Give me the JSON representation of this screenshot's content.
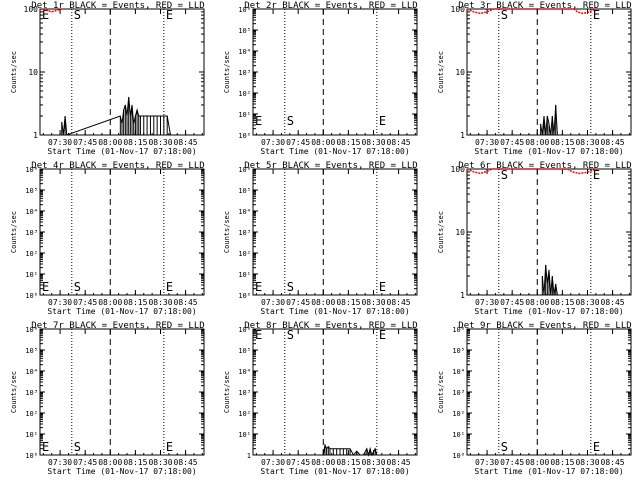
{
  "colors": {
    "events": "#000000",
    "lld": "#ff0000",
    "axes": "#000000",
    "background": "#ffffff"
  },
  "x_axis": {
    "tick_labels": [
      "07:30",
      "07:45",
      "08:00",
      "08:15",
      "08:30",
      "08:45"
    ],
    "title": "Start Time (01-Nov-17 07:18:00)"
  },
  "y_axis_title": "Counts/sec",
  "chart_data": [
    {
      "type": "line",
      "scale": "log",
      "title": "Det 1r BLACK = Events, RED = LLD",
      "ylim": [
        1,
        100
      ],
      "ytick_labels": [
        "1",
        "10",
        "100"
      ],
      "S_time": "07:37",
      "E_time": "08:32",
      "markers": [
        {
          "letter": "E",
          "time": "07:18"
        },
        {
          "letter": "S",
          "time": "07:37"
        },
        {
          "letter": "E",
          "time": "08:32"
        }
      ],
      "lld": [
        {
          "t": "07:18",
          "v": 100
        },
        {
          "t": "07:22",
          "v": 95
        },
        {
          "t": "07:25",
          "v": 90
        },
        {
          "t": "07:28",
          "v": 95
        },
        {
          "t": "07:31",
          "v": 100
        }
      ],
      "events": [
        {
          "t": "07:31",
          "v": 1.6
        },
        {
          "t": "07:32",
          "v": 1
        },
        {
          "t": "07:33",
          "v": 2
        },
        {
          "t": "07:34",
          "v": 1
        },
        {
          "t": "08:06",
          "v": 2
        },
        {
          "t": "08:07",
          "v": 1.5
        },
        {
          "t": "08:08",
          "v": 2.5
        },
        {
          "t": "08:09",
          "v": 3
        },
        {
          "t": "08:10",
          "v": 2
        },
        {
          "t": "08:11",
          "v": 4
        },
        {
          "t": "08:12",
          "v": 2
        },
        {
          "t": "08:13",
          "v": 3
        },
        {
          "t": "08:14",
          "v": 1.5
        },
        {
          "t": "08:15",
          "v": 2
        },
        {
          "t": "08:16",
          "v": 2.5
        },
        {
          "t": "08:17",
          "v": 2
        },
        {
          "t": "08:18",
          "v": 2
        },
        {
          "t": "08:20",
          "v": 2
        },
        {
          "t": "08:22",
          "v": 2
        },
        {
          "t": "08:24",
          "v": 2
        },
        {
          "t": "08:26",
          "v": 2
        },
        {
          "t": "08:28",
          "v": 2
        },
        {
          "t": "08:30",
          "v": 2
        },
        {
          "t": "08:32",
          "v": 2
        },
        {
          "t": "08:34",
          "v": 2
        },
        {
          "t": "08:36",
          "v": 1
        }
      ]
    },
    {
      "type": "line",
      "scale": "log",
      "title": "Det 2r BLACK = Events, RED = LLD",
      "ylim": [
        1,
        1000000
      ],
      "ytick_labels": [
        "10⁰",
        "10¹",
        "10²",
        "10³",
        "10⁴",
        "10⁵",
        "10⁶"
      ],
      "S_time": "07:37",
      "E_time": "08:32",
      "markers": [
        {
          "letter": "E",
          "time": "07:18"
        },
        {
          "letter": "S",
          "time": "07:37"
        },
        {
          "letter": "E",
          "time": "08:32"
        }
      ],
      "lld": [],
      "events": []
    },
    {
      "type": "line",
      "scale": "log",
      "title": "Det 3r BLACK = Events, RED = LLD",
      "ylim": [
        1,
        100
      ],
      "ytick_labels": [
        "1",
        "10",
        "100"
      ],
      "S_time": "07:37",
      "E_time": "08:32",
      "markers": [
        {
          "letter": "S",
          "time": "07:37"
        },
        {
          "letter": "E",
          "time": "08:32"
        }
      ],
      "lld": [
        {
          "t": "07:18",
          "v": 100
        },
        {
          "t": "07:22",
          "v": 90
        },
        {
          "t": "07:26",
          "v": 85
        },
        {
          "t": "07:30",
          "v": 90
        },
        {
          "t": "07:34",
          "v": 100
        },
        {
          "t": "08:22",
          "v": 100
        },
        {
          "t": "08:24",
          "v": 90
        },
        {
          "t": "08:27",
          "v": 85
        },
        {
          "t": "08:30",
          "v": 88
        },
        {
          "t": "08:33",
          "v": 95
        },
        {
          "t": "08:35",
          "v": 100
        }
      ],
      "events": [
        {
          "t": "08:02",
          "v": 1.5
        },
        {
          "t": "08:03",
          "v": 1
        },
        {
          "t": "08:04",
          "v": 2
        },
        {
          "t": "08:05",
          "v": 1
        },
        {
          "t": "08:06",
          "v": 2
        },
        {
          "t": "08:07",
          "v": 1.5
        },
        {
          "t": "08:08",
          "v": 1
        },
        {
          "t": "08:09",
          "v": 2
        },
        {
          "t": "08:10",
          "v": 1
        },
        {
          "t": "08:11",
          "v": 3
        },
        {
          "t": "08:12",
          "v": 1
        }
      ]
    },
    {
      "type": "line",
      "scale": "log",
      "title": "Det 4r BLACK = Events, RED = LLD",
      "ylim": [
        1,
        1000000
      ],
      "ytick_labels": [
        "10⁰",
        "10¹",
        "10²",
        "10³",
        "10⁴",
        "10⁵",
        "10⁶"
      ],
      "S_time": "07:37",
      "E_time": "08:32",
      "markers": [
        {
          "letter": "E",
          "time": "07:18"
        },
        {
          "letter": "S",
          "time": "07:37"
        },
        {
          "letter": "E",
          "time": "08:32"
        }
      ],
      "lld": [],
      "events": []
    },
    {
      "type": "line",
      "scale": "log",
      "title": "Det 5r BLACK = Events, RED = LLD",
      "ylim": [
        1,
        1000000
      ],
      "ytick_labels": [
        "10⁰",
        "10¹",
        "10²",
        "10³",
        "10⁴",
        "10⁵",
        "10⁶"
      ],
      "S_time": "07:37",
      "E_time": "08:32",
      "markers": [
        {
          "letter": "E",
          "time": "07:18"
        },
        {
          "letter": "S",
          "time": "07:37"
        },
        {
          "letter": "E",
          "time": "08:32"
        }
      ],
      "lld": [],
      "events": []
    },
    {
      "type": "line",
      "scale": "log",
      "title": "Det 6r BLACK = Events, RED = LLD",
      "ylim": [
        1,
        100
      ],
      "ytick_labels": [
        "1",
        "10",
        "100"
      ],
      "S_time": "07:37",
      "E_time": "08:32",
      "markers": [
        {
          "letter": "S",
          "time": "07:37"
        },
        {
          "letter": "E",
          "time": "08:32"
        }
      ],
      "lld": [
        {
          "t": "07:18",
          "v": 100
        },
        {
          "t": "07:22",
          "v": 90
        },
        {
          "t": "07:26",
          "v": 85
        },
        {
          "t": "07:30",
          "v": 92
        },
        {
          "t": "07:33",
          "v": 100
        },
        {
          "t": "08:18",
          "v": 100
        },
        {
          "t": "08:21",
          "v": 90
        },
        {
          "t": "08:25",
          "v": 85
        },
        {
          "t": "08:29",
          "v": 88
        },
        {
          "t": "08:33",
          "v": 95
        },
        {
          "t": "08:36",
          "v": 100
        }
      ],
      "events": [
        {
          "t": "08:03",
          "v": 2
        },
        {
          "t": "08:04",
          "v": 1
        },
        {
          "t": "08:05",
          "v": 3
        },
        {
          "t": "08:06",
          "v": 1.5
        },
        {
          "t": "08:07",
          "v": 2.5
        },
        {
          "t": "08:08",
          "v": 1
        },
        {
          "t": "08:09",
          "v": 2
        },
        {
          "t": "08:10",
          "v": 1
        },
        {
          "t": "08:11",
          "v": 1.5
        },
        {
          "t": "08:12",
          "v": 1
        }
      ]
    },
    {
      "type": "line",
      "scale": "log",
      "title": "Det 7r BLACK = Events, RED = LLD",
      "ylim": [
        1,
        1000000
      ],
      "ytick_labels": [
        "10⁰",
        "10¹",
        "10²",
        "10³",
        "10⁴",
        "10⁵",
        "10⁶"
      ],
      "S_time": "07:37",
      "E_time": "08:32",
      "markers": [
        {
          "letter": "E",
          "time": "07:18"
        },
        {
          "letter": "S",
          "time": "07:37"
        },
        {
          "letter": "E",
          "time": "08:32"
        }
      ],
      "lld": [],
      "events": []
    },
    {
      "type": "line",
      "scale": "log",
      "title": "Det 8r BLACK = Events, RED = LLD",
      "ylim": [
        1,
        1000000
      ],
      "ytick_labels": [
        "1",
        "10¹",
        "10²",
        "10³",
        "10⁴",
        "10⁵",
        "10⁶"
      ],
      "S_time": "07:37",
      "E_time": "08:32",
      "markers": [
        {
          "letter": "E",
          "time": "07:18"
        },
        {
          "letter": "S",
          "time": "07:37"
        },
        {
          "letter": "E",
          "time": "08:32"
        }
      ],
      "lld": [],
      "events": [
        {
          "t": "08:00",
          "v": 1
        },
        {
          "t": "08:01",
          "v": 3
        },
        {
          "t": "08:02",
          "v": 2
        },
        {
          "t": "08:03",
          "v": 2.5
        },
        {
          "t": "08:04",
          "v": 2
        },
        {
          "t": "08:06",
          "v": 2
        },
        {
          "t": "08:08",
          "v": 2
        },
        {
          "t": "08:10",
          "v": 2
        },
        {
          "t": "08:12",
          "v": 2
        },
        {
          "t": "08:14",
          "v": 2
        },
        {
          "t": "08:16",
          "v": 2
        },
        {
          "t": "08:18",
          "v": 1
        },
        {
          "t": "08:20",
          "v": 1.5
        },
        {
          "t": "08:22",
          "v": 1
        },
        {
          "t": "08:24",
          "v": 1
        },
        {
          "t": "08:26",
          "v": 2
        },
        {
          "t": "08:27",
          "v": 1
        },
        {
          "t": "08:28",
          "v": 2
        },
        {
          "t": "08:29",
          "v": 1
        },
        {
          "t": "08:31",
          "v": 2
        },
        {
          "t": "08:32",
          "v": 1
        }
      ]
    },
    {
      "type": "line",
      "scale": "log",
      "title": "Det 9r BLACK = Events, RED = LLD",
      "ylim": [
        1,
        1000000
      ],
      "ytick_labels": [
        "10⁰",
        "10¹",
        "10²",
        "10³",
        "10⁴",
        "10⁵",
        "10⁶"
      ],
      "S_time": "07:37",
      "E_time": "08:32",
      "markers": [
        {
          "letter": "S",
          "time": "07:37"
        },
        {
          "letter": "E",
          "time": "08:32"
        }
      ],
      "lld": [],
      "events": []
    }
  ]
}
